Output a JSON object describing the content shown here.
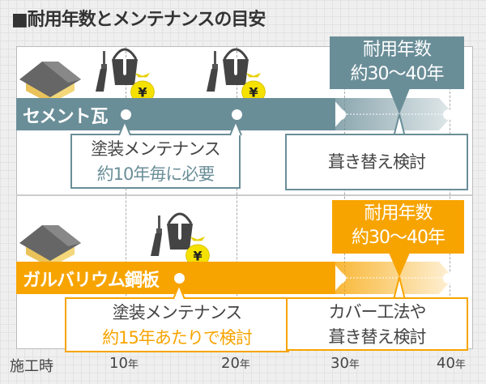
{
  "title": "■耐用年数とメンテナンスの目安",
  "colors": {
    "cement": "#6a8e98",
    "galvalume": "#f7a400",
    "text": "#444444"
  },
  "rows": [
    {
      "name": "セメント瓦",
      "lifespan_line1": "耐用年数",
      "lifespan_line2": "約30〜40年",
      "maintenance_line1": "塗装メンテナンス",
      "maintenance_line2": "約10年毎に必要",
      "end_line1": "葺き替え検討",
      "end_line2": "",
      "maintenance_icons": 2
    },
    {
      "name": "ガルバリウム鋼板",
      "lifespan_line1": "耐用年数",
      "lifespan_line2": "約30〜40年",
      "maintenance_line1": "塗装メンテナンス",
      "maintenance_line2": "約15年あたりで検討",
      "end_line1": "カバー工法や",
      "end_line2": "葺き替え検討",
      "maintenance_icons": 1
    }
  ],
  "axis": {
    "start": "施工時",
    "ticks": [
      {
        "num": "10",
        "unit": "年"
      },
      {
        "num": "20",
        "unit": "年"
      },
      {
        "num": "30",
        "unit": "年"
      },
      {
        "num": "40",
        "unit": "年"
      }
    ]
  }
}
